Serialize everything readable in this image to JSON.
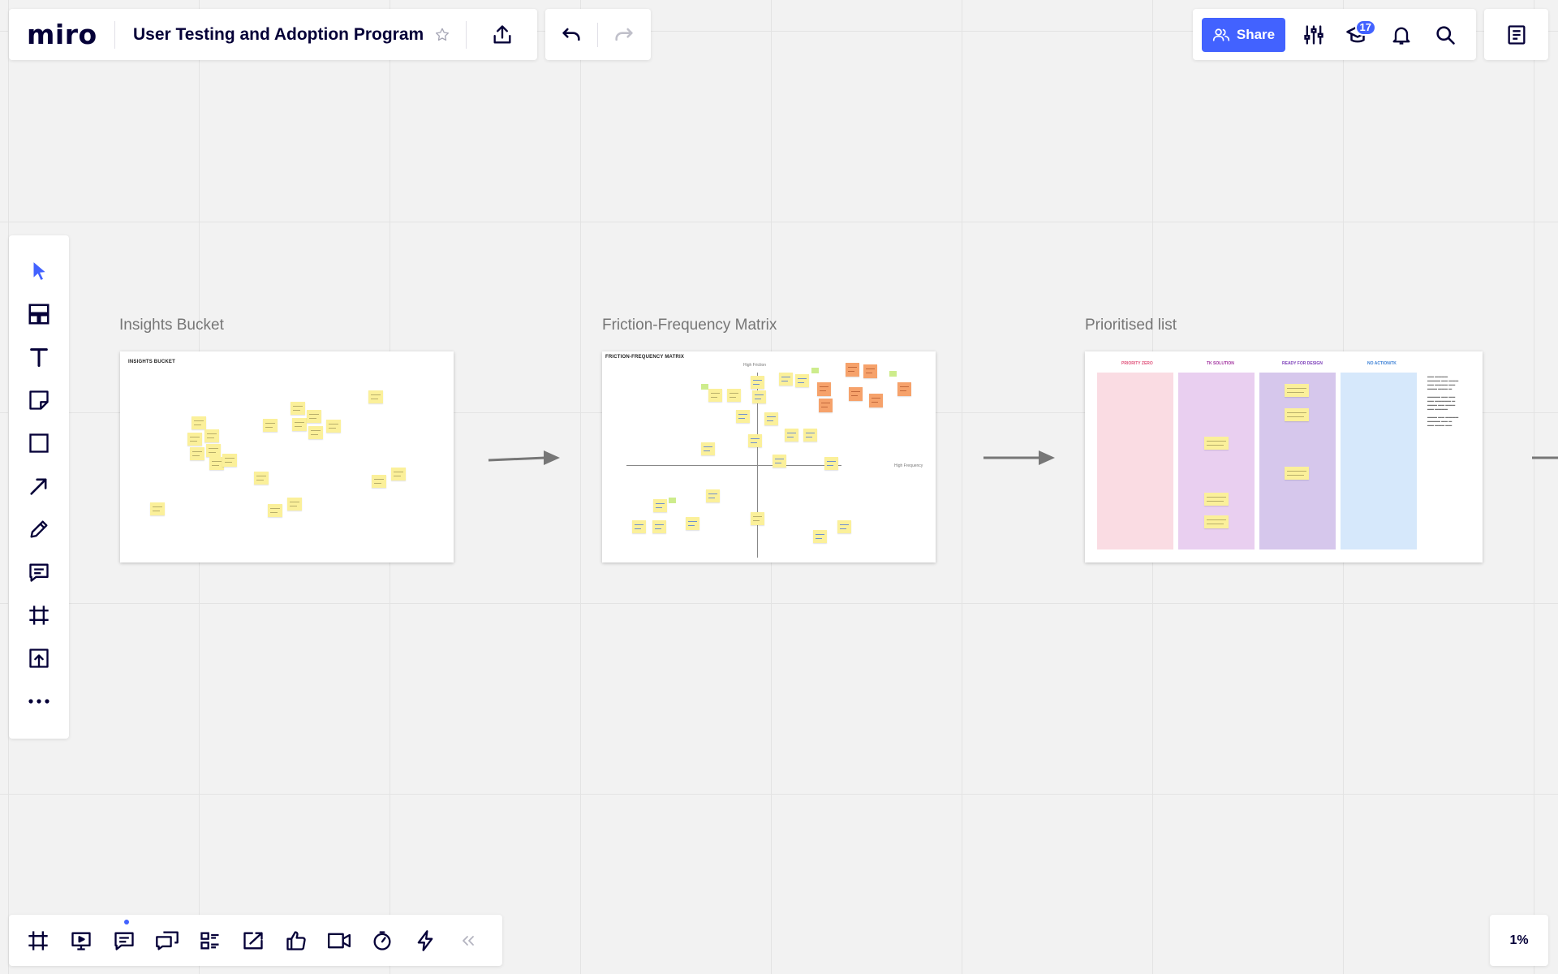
{
  "app": {
    "logo_text": "miro",
    "board_title": "User Testing and Adoption Program"
  },
  "header": {
    "share_label": "Share",
    "notifications_badge": "17",
    "icons": [
      "star-icon",
      "export-icon",
      "undo-icon",
      "redo-icon",
      "share-users-icon",
      "settings-sliders-icon",
      "learning-hat-icon",
      "bell-icon",
      "search-icon",
      "board-notes-icon"
    ]
  },
  "toolbar": {
    "tools": [
      "select",
      "templates",
      "text",
      "sticky-note",
      "shape",
      "arrow",
      "pen",
      "comment",
      "frame",
      "upload",
      "more"
    ]
  },
  "frames": [
    {
      "title": "Insights Bucket",
      "heading": "INSIGHTS BUCKET"
    },
    {
      "title": "Friction-Frequency Matrix",
      "heading": "FRICTION-FREQUENCY MATRIX",
      "y_label": "High Friction",
      "x_label": "High Frequency"
    },
    {
      "title": "Prioritised list",
      "columns": [
        {
          "label": "PRIORITY ZERO",
          "color": "#fadce3",
          "label_color": "#e0517a"
        },
        {
          "label": "TK SOLUTION",
          "color": "#e9cff0",
          "label_color": "#a0309e"
        },
        {
          "label": "READY FOR DESIGN",
          "color": "#d6c7ec",
          "label_color": "#7a3cb8"
        },
        {
          "label": "NO ACTION/TK",
          "color": "#d6e8fb",
          "label_color": "#3a7fd5"
        }
      ]
    }
  ],
  "bottom_toolbar": {
    "tools": [
      "frames",
      "presentation",
      "comments",
      "chat",
      "cards",
      "screen-share",
      "voting",
      "video-call",
      "timer",
      "activity"
    ]
  },
  "zoom": "1%"
}
